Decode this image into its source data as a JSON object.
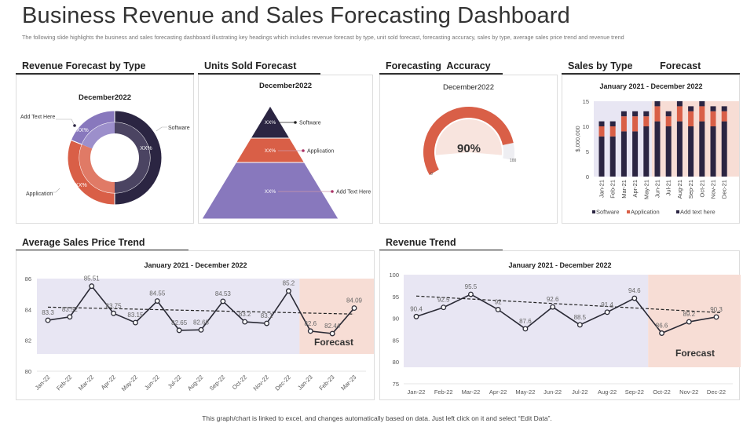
{
  "header": {
    "title": "Business Revenue and Sales Forecasting Dashboard",
    "subtitle": "The following slide highlights the business and sales forecasting dashboard illustrating key headings which includes revenue forecast by type, unit sold forecast, forecasting accuracy, sales by type, average sales price trend and revenue trend"
  },
  "colors": {
    "dark": "#2b2542",
    "orange": "#d95f47",
    "purple": "#8878bd",
    "lavender": "#e8e6f3",
    "peach": "#f7ddd5"
  },
  "revenue_forecast": {
    "heading": "Revenue Forecast by Type",
    "period": "December2022",
    "segments": [
      {
        "name": "Software",
        "label": "XX%"
      },
      {
        "name": "Application",
        "label": "XX%"
      },
      {
        "name": "Add Text Here",
        "label": "XX%"
      }
    ]
  },
  "units_sold": {
    "heading": "Units Sold Forecast",
    "period": "December2022",
    "levels": [
      {
        "name": "Software",
        "label": "XX%"
      },
      {
        "name": "Application",
        "label": "XX%"
      },
      {
        "name": "Add Text Here",
        "label": "XX%"
      }
    ]
  },
  "accuracy": {
    "heading": "Forecasting  Accuracy",
    "period": "December2022",
    "value": 90,
    "value_label": "90%",
    "min_label": "0",
    "max_label": "100"
  },
  "sales_by_type": {
    "heading": "Sales by Type          Forecast"
  },
  "avg_price": {
    "heading": "Average Sales Price Trend"
  },
  "revenue_trend": {
    "heading": "Revenue Trend"
  },
  "footer": {
    "text": "This graph/chart is linked to excel, and changes automatically based on data. Just left click on it and select “Edit Data”."
  },
  "chart_data": [
    {
      "type": "bar",
      "stacked": true,
      "title": "January 2021 - December 2022",
      "ylabel": "$,000,000",
      "ylim": [
        0,
        15
      ],
      "yticks": [
        0,
        5,
        10,
        15
      ],
      "categories": [
        "Jan-21",
        "Feb-21",
        "Mar-21",
        "Apr-21",
        "May-21",
        "Jun-21",
        "Jul-21",
        "Aug-21",
        "Sep-21",
        "Oct-21",
        "Nov-21",
        "Dec-21"
      ],
      "series": [
        {
          "name": "Software",
          "values": [
            8,
            8,
            9,
            9,
            10,
            11,
            10,
            11,
            10,
            11,
            10,
            11
          ]
        },
        {
          "name": "Application",
          "values": [
            2,
            2,
            3,
            3,
            2,
            3,
            2,
            3,
            3,
            3,
            3,
            2
          ]
        },
        {
          "name": "Add text here",
          "values": [
            1,
            1,
            1,
            1,
            1,
            1,
            1,
            1,
            1,
            1,
            1,
            1
          ]
        }
      ],
      "legend": "bottom",
      "forecast_from": "Jun-21"
    },
    {
      "type": "line",
      "title": "January 2021 - December 2022",
      "ylim": [
        80,
        86
      ],
      "yticks": [
        80,
        82,
        84,
        86
      ],
      "categories": [
        "Jan-22",
        "Feb-22",
        "Mar-22",
        "Apr-22",
        "May-22",
        "Jun-22",
        "Jul-22",
        "Aug-22",
        "Sep-22",
        "Oct-22",
        "Nov-22",
        "Dec-22",
        "Jan-23",
        "Feb-23",
        "Mar-23"
      ],
      "values": [
        83.3,
        83.52,
        85.51,
        83.75,
        83.15,
        84.55,
        82.65,
        82.68,
        84.53,
        83.2,
        83.1,
        85.2,
        82.6,
        82.44,
        84.09
      ],
      "labels": [
        "83.3",
        "83.52",
        "85.51",
        "83.75",
        "83.15",
        "84.55",
        "82.65",
        "82.68",
        "84.53",
        "83.2",
        "83.1",
        "85.2",
        "82.6",
        "82.44",
        "84.09"
      ],
      "trend": [
        84.15,
        83.7
      ],
      "forecast_label": "Forecast",
      "forecast_from": "Jan-23"
    },
    {
      "type": "line",
      "title": "January 2021 - December 2022",
      "ylim": [
        75,
        100
      ],
      "yticks": [
        75,
        80,
        85,
        90,
        95,
        100
      ],
      "categories": [
        "Jan-22",
        "Feb-22",
        "Mar-22",
        "Apr-22",
        "May-22",
        "Jun-22",
        "Jul-22",
        "Aug-22",
        "Sep-22",
        "Oct-22",
        "Nov-22",
        "Dec-22"
      ],
      "values": [
        90.4,
        92.5,
        95.5,
        92,
        87.6,
        92.6,
        88.5,
        91.4,
        94.6,
        86.6,
        89.2,
        90.3
      ],
      "labels": [
        "90.4",
        "92.5",
        "95.5",
        "92",
        "87.6",
        "92.6",
        "88.5",
        "91.4",
        "94.6",
        "86.6",
        "89.2",
        "90.3"
      ],
      "trend": [
        95.1,
        91.3
      ],
      "forecast_label": "Forecast",
      "forecast_from": "Oct-22"
    }
  ]
}
